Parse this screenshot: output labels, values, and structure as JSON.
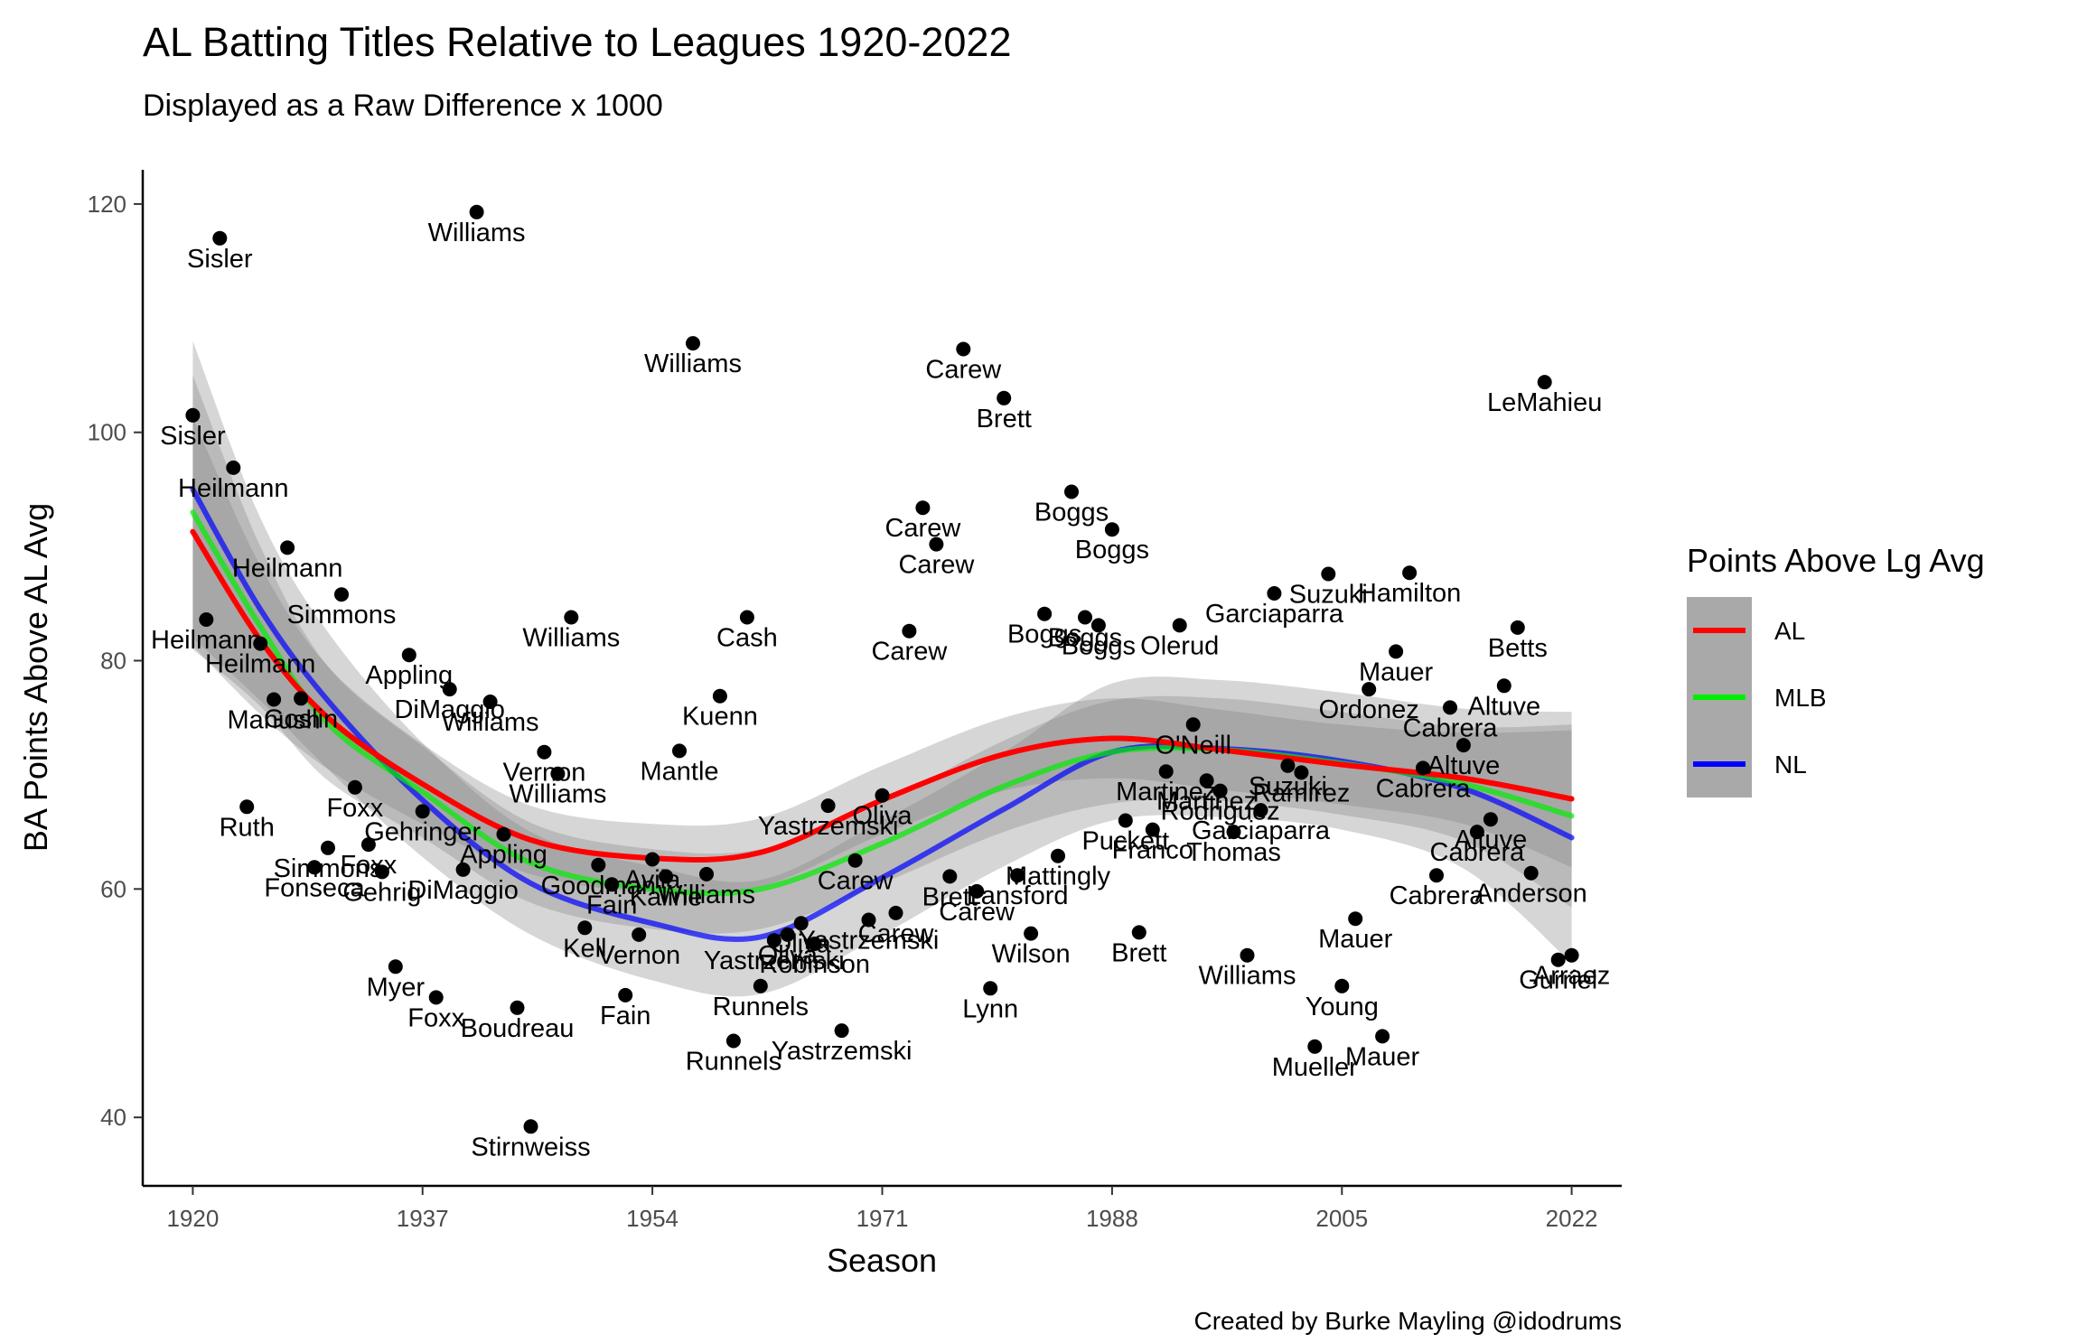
{
  "chart_data": {
    "type": "scatter",
    "title": "AL Batting Titles Relative to Leagues 1920-2022",
    "subtitle": "Displayed as a Raw Difference x 1000",
    "xlabel": "Season",
    "ylabel": "BA Points Above AL Avg",
    "caption": "Created by Burke Mayling @idodrums",
    "xlim": [
      1916.3,
      2025.7
    ],
    "ylim": [
      34,
      123
    ],
    "x_ticks": [
      1920,
      1937,
      1954,
      1971,
      1988,
      2005,
      2022
    ],
    "y_ticks": [
      40,
      60,
      80,
      100,
      120
    ],
    "grid": false,
    "legend": {
      "title": "Points Above Lg Avg",
      "position": "right",
      "entries": [
        {
          "label": "AL",
          "color": "#ff0000"
        },
        {
          "label": "MLB",
          "color": "#00ee00"
        },
        {
          "label": "NL",
          "color": "#0000ff"
        }
      ]
    },
    "points": [
      {
        "x": 1920,
        "y": 101.5,
        "label": "Sisler"
      },
      {
        "x": 1921,
        "y": 83.6,
        "label": "Heilmann"
      },
      {
        "x": 1922,
        "y": 117.0,
        "label": "Sisler"
      },
      {
        "x": 1923,
        "y": 96.9,
        "label": "Heilmann"
      },
      {
        "x": 1924,
        "y": 67.2,
        "label": "Ruth"
      },
      {
        "x": 1925,
        "y": 81.5,
        "label": "Heilmann"
      },
      {
        "x": 1926,
        "y": 76.6,
        "label": "Manush"
      },
      {
        "x": 1927,
        "y": 89.9,
        "label": "Heilmann"
      },
      {
        "x": 1928,
        "y": 76.7,
        "label": "Goslin"
      },
      {
        "x": 1929,
        "y": 61.9,
        "label": "Fonseca"
      },
      {
        "x": 1930,
        "y": 63.6,
        "label": "Simmons"
      },
      {
        "x": 1931,
        "y": 85.8,
        "label": "Simmons"
      },
      {
        "x": 1932,
        "y": 68.9,
        "label": "Foxx"
      },
      {
        "x": 1933,
        "y": 63.9,
        "label": "Foxx"
      },
      {
        "x": 1934,
        "y": 61.5,
        "label": "Gehrig"
      },
      {
        "x": 1935,
        "y": 53.2,
        "label": "Myer"
      },
      {
        "x": 1936,
        "y": 80.5,
        "label": "Appling"
      },
      {
        "x": 1937,
        "y": 66.8,
        "label": "Gehringer"
      },
      {
        "x": 1938,
        "y": 50.5,
        "label": "Foxx"
      },
      {
        "x": 1939,
        "y": 77.5,
        "label": "DiMaggio"
      },
      {
        "x": 1940,
        "y": 61.7,
        "label": "DiMaggio"
      },
      {
        "x": 1941,
        "y": 119.3,
        "label": "Williams"
      },
      {
        "x": 1942,
        "y": 76.4,
        "label": "Williams"
      },
      {
        "x": 1943,
        "y": 64.8,
        "label": "Appling"
      },
      {
        "x": 1944,
        "y": 49.6,
        "label": "Boudreau"
      },
      {
        "x": 1945,
        "y": 39.2,
        "label": "Stirnweiss"
      },
      {
        "x": 1946,
        "y": 72.0,
        "label": "Vernon"
      },
      {
        "x": 1947,
        "y": 70.1,
        "label": "Williams"
      },
      {
        "x": 1948,
        "y": 83.8,
        "label": "Williams"
      },
      {
        "x": 1949,
        "y": 56.6,
        "label": "Kell"
      },
      {
        "x": 1950,
        "y": 62.1,
        "label": "Goodman"
      },
      {
        "x": 1951,
        "y": 60.4,
        "label": "Fain"
      },
      {
        "x": 1952,
        "y": 50.7,
        "label": "Fain"
      },
      {
        "x": 1953,
        "y": 56.0,
        "label": "Vernon"
      },
      {
        "x": 1954,
        "y": 62.6,
        "label": "Avila"
      },
      {
        "x": 1955,
        "y": 61.1,
        "label": "Kaline"
      },
      {
        "x": 1956,
        "y": 72.1,
        "label": "Mantle"
      },
      {
        "x": 1957,
        "y": 107.8,
        "label": "Williams"
      },
      {
        "x": 1958,
        "y": 61.3,
        "label": "Williams"
      },
      {
        "x": 1959,
        "y": 76.9,
        "label": "Kuenn"
      },
      {
        "x": 1960,
        "y": 46.7,
        "label": "Runnels"
      },
      {
        "x": 1961,
        "y": 83.8,
        "label": "Cash"
      },
      {
        "x": 1962,
        "y": 51.5,
        "label": "Runnels"
      },
      {
        "x": 1963,
        "y": 55.5,
        "label": "Yastrzemski"
      },
      {
        "x": 1964,
        "y": 56.0,
        "label": "Oliva"
      },
      {
        "x": 1965,
        "y": 57.0,
        "label": "Oliva"
      },
      {
        "x": 1966,
        "y": 55.2,
        "label": "Robinson"
      },
      {
        "x": 1967,
        "y": 67.3,
        "label": "Yastrzemski"
      },
      {
        "x": 1968,
        "y": 47.6,
        "label": "Yastrzemski"
      },
      {
        "x": 1969,
        "y": 62.5,
        "label": "Carew"
      },
      {
        "x": 1970,
        "y": 57.3,
        "label": "Yastrzemski"
      },
      {
        "x": 1971,
        "y": 68.2,
        "label": "Oliva"
      },
      {
        "x": 1972,
        "y": 57.9,
        "label": "Carew"
      },
      {
        "x": 1973,
        "y": 82.6,
        "label": "Carew"
      },
      {
        "x": 1974,
        "y": 93.4,
        "label": "Carew"
      },
      {
        "x": 1975,
        "y": 90.2,
        "label": "Carew"
      },
      {
        "x": 1976,
        "y": 61.1,
        "label": "Brett"
      },
      {
        "x": 1977,
        "y": 107.3,
        "label": "Carew"
      },
      {
        "x": 1978,
        "y": 59.8,
        "label": "Carew"
      },
      {
        "x": 1979,
        "y": 51.3,
        "label": "Lynn"
      },
      {
        "x": 1980,
        "y": 103.0,
        "label": "Brett"
      },
      {
        "x": 1981,
        "y": 61.2,
        "label": "Lansford"
      },
      {
        "x": 1982,
        "y": 56.1,
        "label": "Wilson"
      },
      {
        "x": 1983,
        "y": 84.1,
        "label": "Boggs"
      },
      {
        "x": 1984,
        "y": 62.9,
        "label": "Mattingly"
      },
      {
        "x": 1985,
        "y": 94.8,
        "label": "Boggs"
      },
      {
        "x": 1986,
        "y": 83.8,
        "label": "Boggs"
      },
      {
        "x": 1987,
        "y": 83.1,
        "label": "Boggs"
      },
      {
        "x": 1988,
        "y": 91.5,
        "label": "Boggs"
      },
      {
        "x": 1989,
        "y": 66.0,
        "label": "Puckett"
      },
      {
        "x": 1990,
        "y": 56.2,
        "label": "Brett"
      },
      {
        "x": 1991,
        "y": 65.2,
        "label": "Franco"
      },
      {
        "x": 1992,
        "y": 70.3,
        "label": "Martinez"
      },
      {
        "x": 1993,
        "y": 83.1,
        "label": "Olerud"
      },
      {
        "x": 1994,
        "y": 74.4,
        "label": "O'Neill"
      },
      {
        "x": 1995,
        "y": 69.5,
        "label": "Martinez"
      },
      {
        "x": 1996,
        "y": 68.6,
        "label": "Rodriguez"
      },
      {
        "x": 1997,
        "y": 65.0,
        "label": "Thomas"
      },
      {
        "x": 1998,
        "y": 54.2,
        "label": "Williams"
      },
      {
        "x": 1999,
        "y": 66.9,
        "label": "Garciaparra"
      },
      {
        "x": 2000,
        "y": 85.9,
        "label": "Garciaparra"
      },
      {
        "x": 2001,
        "y": 70.8,
        "label": "Suzuki"
      },
      {
        "x": 2002,
        "y": 70.2,
        "label": "Ramirez"
      },
      {
        "x": 2003,
        "y": 46.2,
        "label": "Mueller"
      },
      {
        "x": 2004,
        "y": 87.6,
        "label": "Suzuki"
      },
      {
        "x": 2005,
        "y": 51.5,
        "label": "Young"
      },
      {
        "x": 2006,
        "y": 57.4,
        "label": "Mauer"
      },
      {
        "x": 2007,
        "y": 77.5,
        "label": "Ordonez"
      },
      {
        "x": 2008,
        "y": 47.1,
        "label": "Mauer"
      },
      {
        "x": 2009,
        "y": 80.8,
        "label": "Mauer"
      },
      {
        "x": 2010,
        "y": 87.7,
        "label": "Hamilton"
      },
      {
        "x": 2011,
        "y": 70.6,
        "label": "Cabrera"
      },
      {
        "x": 2012,
        "y": 61.2,
        "label": "Cabrera"
      },
      {
        "x": 2013,
        "y": 75.9,
        "label": "Cabrera"
      },
      {
        "x": 2014,
        "y": 72.6,
        "label": "Altuve"
      },
      {
        "x": 2015,
        "y": 65.0,
        "label": "Cabrera"
      },
      {
        "x": 2016,
        "y": 66.1,
        "label": "Altuve"
      },
      {
        "x": 2017,
        "y": 77.8,
        "label": "Altuve"
      },
      {
        "x": 2018,
        "y": 82.9,
        "label": "Betts"
      },
      {
        "x": 2019,
        "y": 61.4,
        "label": "Anderson"
      },
      {
        "x": 2020,
        "y": 104.4,
        "label": "LeMahieu"
      },
      {
        "x": 2021,
        "y": 53.8,
        "label": "Gurriel"
      },
      {
        "x": 2022,
        "y": 54.2,
        "label": "Arraez"
      }
    ],
    "series": [
      {
        "name": "AL",
        "color": "#ff0000",
        "x": [
          1920,
          1925,
          1930,
          1937,
          1945,
          1954,
          1962,
          1971,
          1980,
          1988,
          1996,
          2005,
          2014,
          2022
        ],
        "y": [
          91.3,
          81.8,
          75.0,
          69.2,
          64.3,
          62.7,
          63.2,
          67.8,
          71.8,
          73.2,
          72.2,
          70.9,
          69.7,
          67.9
        ],
        "band": [
          10,
          6.5,
          4.5,
          3.5,
          3.0,
          3.0,
          3.0,
          3.0,
          3.2,
          3.5,
          3.5,
          3.5,
          4.0,
          6.0
        ]
      },
      {
        "name": "MLB",
        "color": "#00ee00",
        "x": [
          1920,
          1925,
          1930,
          1937,
          1945,
          1954,
          1962,
          1971,
          1980,
          1988,
          1996,
          2005,
          2014,
          2022
        ],
        "y": [
          93.0,
          83.0,
          74.5,
          68.5,
          62.3,
          60.0,
          60.0,
          64.0,
          69.0,
          72.0,
          72.2,
          71.0,
          69.2,
          66.4
        ],
        "band": [
          12,
          7,
          5,
          4,
          3.5,
          3.5,
          3.5,
          3.5,
          4,
          4.5,
          4.5,
          4.5,
          5,
          8
        ]
      },
      {
        "name": "NL",
        "color": "#0000ff",
        "x": [
          1920,
          1925,
          1930,
          1937,
          1945,
          1954,
          1962,
          1971,
          1980,
          1988,
          1996,
          2005,
          2014,
          2022
        ],
        "y": [
          95.0,
          84.5,
          76.5,
          67.8,
          60.5,
          57.0,
          55.8,
          61.0,
          67.0,
          72.0,
          72.3,
          71.2,
          68.8,
          64.5
        ],
        "band": [
          13,
          8,
          6,
          5,
          4.5,
          5,
          5,
          5,
          5,
          6,
          6,
          6,
          7,
          11
        ]
      }
    ]
  }
}
